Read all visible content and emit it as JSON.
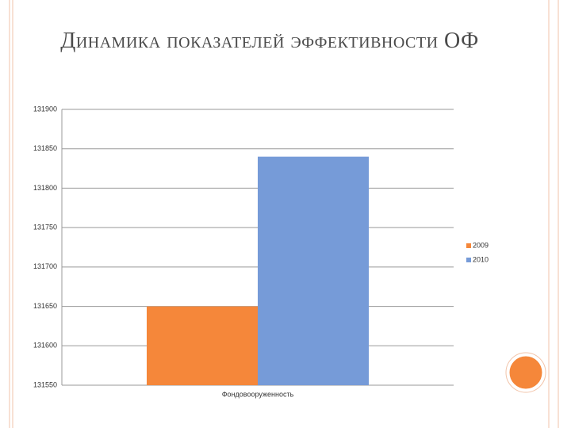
{
  "chart_data": {
    "type": "bar",
    "title": "Динамика показателей эффективности ОФ",
    "categories": [
      "Фондовооруженность"
    ],
    "series": [
      {
        "name": "2009",
        "color": "#f5873a",
        "values": [
          131650
        ]
      },
      {
        "name": "2010",
        "color": "#769bd8",
        "values": [
          131840
        ]
      }
    ],
    "ylim": [
      131550,
      131900
    ],
    "yticks": [
      131550,
      131600,
      131650,
      131700,
      131750,
      131800,
      131850,
      131900
    ],
    "grid": true,
    "legend": "right"
  }
}
